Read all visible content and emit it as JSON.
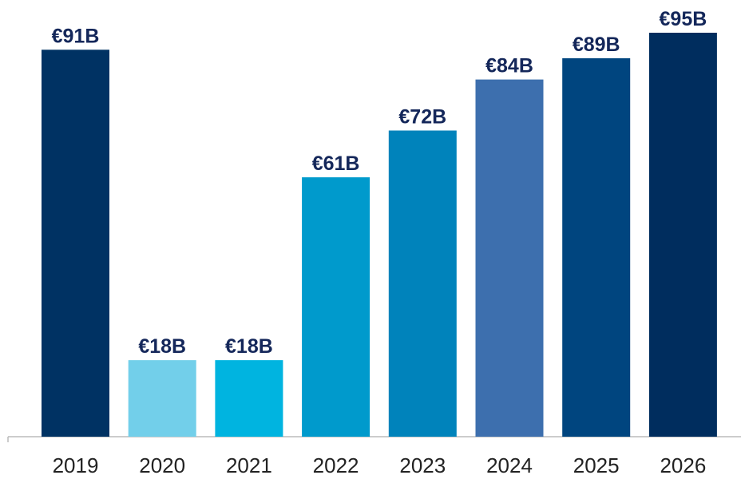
{
  "chart_data": {
    "type": "bar",
    "categories": [
      "2019",
      "2020",
      "2021",
      "2022",
      "2023",
      "2024",
      "2025",
      "2026"
    ],
    "values": [
      91,
      18,
      18,
      61,
      72,
      84,
      89,
      95
    ],
    "value_labels": [
      "€91B",
      "€18B",
      "€18B",
      "€61B",
      "€72B",
      "€84B",
      "€89B",
      "€95B"
    ],
    "colors": [
      "#003263",
      "#72cfea",
      "#00b4e0",
      "#009acc",
      "#0083bb",
      "#3d6fae",
      "#00457f",
      "#002d5e"
    ]
  }
}
